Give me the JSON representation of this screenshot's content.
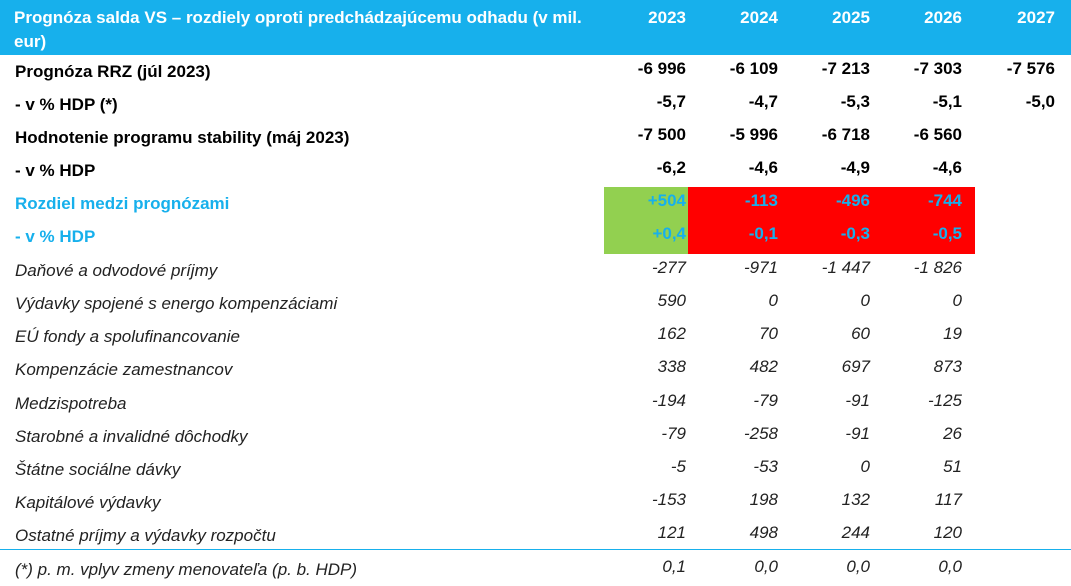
{
  "header": {
    "title": "Prognóza salda VS – rozdiely oproti predchádzajúcemu odhadu (v mil. eur)",
    "years": [
      "2023",
      "2024",
      "2025",
      "2026",
      "2027"
    ]
  },
  "rows": [
    {
      "label": "Prognóza RRZ (júl 2023)",
      "values": [
        "-6 996",
        "-6 109",
        "-7 213",
        "-7 303",
        "-7 576"
      ],
      "style": "bold"
    },
    {
      "label": "- v % HDP (*)",
      "values": [
        "-5,7",
        "-4,7",
        "-5,3",
        "-5,1",
        "-5,0"
      ],
      "style": "bold"
    },
    {
      "label": "Hodnotenie programu stability (máj 2023)",
      "values": [
        "-7 500",
        "-5 996",
        "-6 718",
        "-6 560",
        ""
      ],
      "style": "bold"
    },
    {
      "label": "- v % HDP",
      "values": [
        "-6,2",
        "-4,6",
        "-4,9",
        "-4,6",
        ""
      ],
      "style": "bold"
    },
    {
      "label": "Rozdiel medzi prognózami",
      "values": [
        "+504",
        "-113",
        "-496",
        "-744",
        ""
      ],
      "style": "blue"
    },
    {
      "label": "- v % HDP",
      "values": [
        "+0,4",
        "-0,1",
        "-0,3",
        "-0,5",
        ""
      ],
      "style": "blue"
    },
    {
      "label": "Daňové a odvodové príjmy",
      "values": [
        "-277",
        "-971",
        "-1 447",
        "-1 826",
        ""
      ],
      "style": "ital"
    },
    {
      "label": "Výdavky spojené s energo kompenzáciami",
      "values": [
        "590",
        "0",
        "0",
        "0",
        ""
      ],
      "style": "ital"
    },
    {
      "label": "EÚ fondy a spolufinancovanie",
      "values": [
        "162",
        "70",
        "60",
        "19",
        ""
      ],
      "style": "ital"
    },
    {
      "label": "Kompenzácie zamestnancov",
      "values": [
        "338",
        "482",
        "697",
        "873",
        ""
      ],
      "style": "ital"
    },
    {
      "label": "Medzispotreba",
      "values": [
        "-194",
        "-79",
        "-91",
        "-125",
        ""
      ],
      "style": "ital"
    },
    {
      "label": "Starobné a invalidné dôchodky",
      "values": [
        "-79",
        "-258",
        "-91",
        "26",
        ""
      ],
      "style": "ital"
    },
    {
      "label": "Štátne sociálne dávky",
      "values": [
        "-5",
        "-53",
        "0",
        "51",
        ""
      ],
      "style": "ital"
    },
    {
      "label": "Kapitálové výdavky",
      "values": [
        "-153",
        "198",
        "132",
        "117",
        ""
      ],
      "style": "ital"
    },
    {
      "label": "Ostatné príjmy a výdavky rozpočtu",
      "values": [
        "121",
        "498",
        "244",
        "120",
        ""
      ],
      "style": "ital"
    },
    {
      "label": "(*) p. m. vplyv zmeny menovateľa (p. b. HDP)",
      "values": [
        "0,1",
        "0,0",
        "0,0",
        "0,0",
        ""
      ],
      "style": "ital"
    }
  ],
  "colors": {
    "header_bg": "#17b0ec",
    "positive_diff": "#92d050",
    "negative_diff": "#ff0000"
  }
}
